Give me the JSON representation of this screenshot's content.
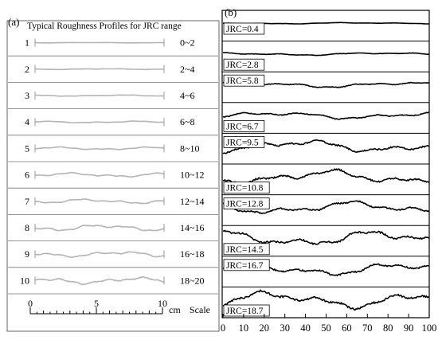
{
  "panel_a": {
    "label": "(a)",
    "title": "Typical Roughness Profiles for JRC range",
    "rows": [
      {
        "num": "1",
        "range": "0~2",
        "amp": 0.3
      },
      {
        "num": "2",
        "range": "2~4",
        "amp": 0.6
      },
      {
        "num": "3",
        "range": "4~6",
        "amp": 0.9
      },
      {
        "num": "4",
        "range": "6~8",
        "amp": 1.2
      },
      {
        "num": "5",
        "range": "8~10",
        "amp": 2.0
      },
      {
        "num": "6",
        "range": "10~12",
        "amp": 3.0
      },
      {
        "num": "7",
        "range": "12~14",
        "amp": 3.2
      },
      {
        "num": "8",
        "range": "14~16",
        "amp": 4.5
      },
      {
        "num": "9",
        "range": "16~18",
        "amp": 4.0
      },
      {
        "num": "10",
        "range": "18~20",
        "amp": 4.8
      }
    ],
    "scale": {
      "ticks": [
        "0",
        "5",
        "10"
      ],
      "unit": "cm",
      "word": "Scale"
    }
  },
  "panel_b": {
    "label": "(b)",
    "profiles": [
      {
        "label": "JRC=0.4",
        "amp": 1.0
      },
      {
        "label": "JRC=2.8",
        "amp": 2.0
      },
      {
        "label": "JRC=5.8",
        "amp": 4.0
      },
      {
        "label": "JRC=6.7",
        "amp": 5.0
      },
      {
        "label": "JRC=9.5",
        "amp": 9.0
      },
      {
        "label": "JRC=10.8",
        "amp": 10.0
      },
      {
        "label": "JRC=12.8",
        "amp": 9.0
      },
      {
        "label": "JRC=14.5",
        "amp": 11.0
      },
      {
        "label": "JRC=16.7",
        "amp": 9.0
      },
      {
        "label": "JRC=18.7",
        "amp": 12.0
      }
    ],
    "x_ticks": [
      "0",
      "10",
      "20",
      "30",
      "40",
      "50",
      "60",
      "70",
      "80",
      "90",
      "100"
    ]
  },
  "colors": {
    "profile_a": "#b5b5b5",
    "profile_b": "#000000",
    "frame": "#333333"
  }
}
